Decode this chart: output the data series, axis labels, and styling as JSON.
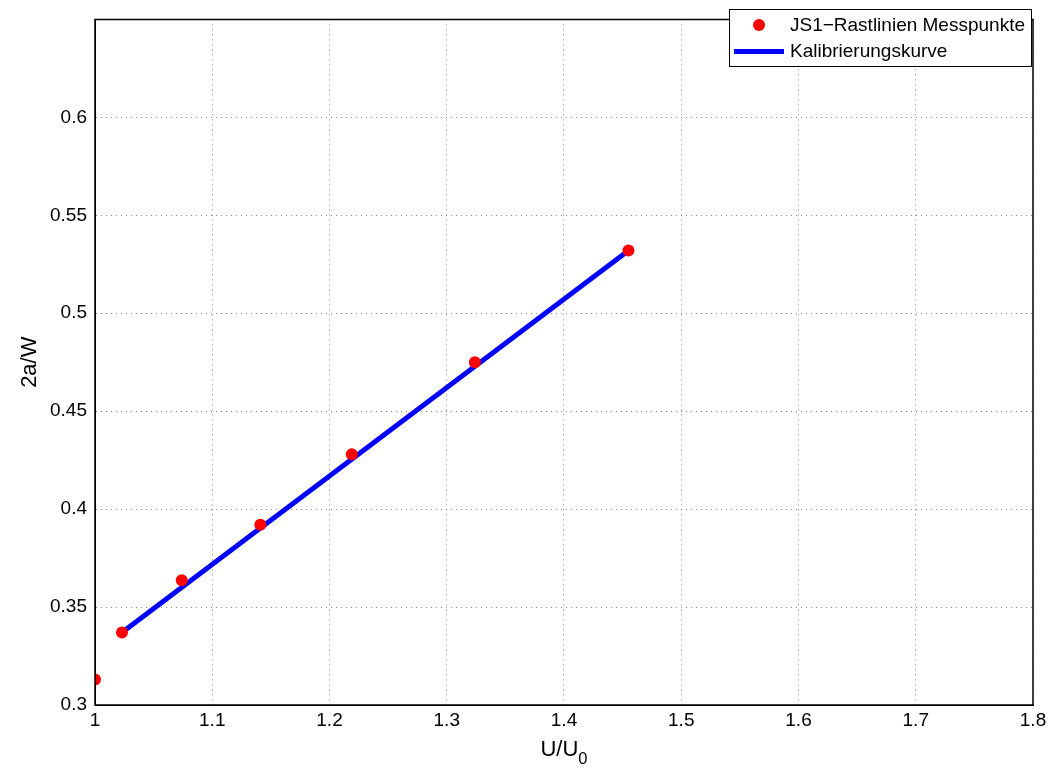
{
  "chart_data": {
    "type": "scatter",
    "xlabel": "U/U$_{0}$",
    "ylabel": "2a/W",
    "xlim": [
      1,
      1.8
    ],
    "xticks": [
      1,
      1.1,
      1.2,
      1.3,
      1.4,
      1.5,
      1.6,
      1.7,
      1.8
    ],
    "ylim": [
      0.3,
      0.65
    ],
    "yticks": [
      0.3,
      0.35,
      0.4,
      0.45,
      0.5,
      0.55,
      0.6
    ],
    "grid": true,
    "legend": "top right",
    "series": [
      {
        "name": "JS1−Rastlinien Messpunkte",
        "type": "scatter",
        "marker": "circle",
        "color": "#ff0000",
        "x": [
          1.0,
          1.023,
          1.074,
          1.141,
          1.219,
          1.324,
          1.455
        ],
        "values": [
          0.313,
          0.337,
          0.3637,
          0.392,
          0.428,
          0.475,
          0.532
        ]
      },
      {
        "name": "Kalibrierungskurve",
        "type": "line",
        "marker": "none",
        "line_style": "solid",
        "color": "#0000ff",
        "x": [
          1.023,
          1.455
        ],
        "values": [
          0.337,
          0.532
        ]
      }
    ]
  }
}
